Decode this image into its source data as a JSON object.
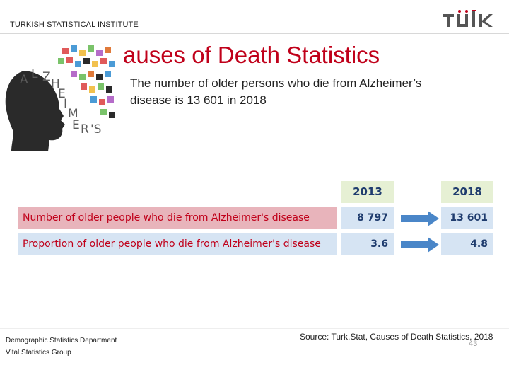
{
  "header": {
    "institute": "TURKISH STATISTICAL INSTITUTE",
    "logo_text": "TÜİK"
  },
  "graphic": {
    "letters": [
      "A",
      "L",
      "Z",
      "H",
      "E",
      "I",
      "M",
      "E",
      "R",
      "'S"
    ]
  },
  "slide": {
    "title": "auses of Death Statistics",
    "subtitle": "The number of older persons who die from Alzheimer’s disease is 13 601 in 2018"
  },
  "table": {
    "columns": [
      "2013",
      "2018"
    ],
    "rows": [
      {
        "label": "Number of older people who die from Alzheimer's disease",
        "v2013": "8 797",
        "v2018": "13 601"
      },
      {
        "label": "Proportion of older people who die from Alzheimer's disease",
        "v2013": "3.6",
        "v2018": "4.8"
      }
    ]
  },
  "source": "Source: Turk.Stat, Causes of Death Statistics, 2018",
  "footer": {
    "department": "Demographic Statistics Department",
    "group": "Vital Statistics Group",
    "page_number": "43"
  },
  "colors": {
    "accent_red": "#c0001a",
    "header_green": "#e6f0d4",
    "cell_blue": "#d6e4f3",
    "row_pink": "#e8b4bb",
    "arrow_blue": "#4a86c8",
    "navy": "#1f3c6e"
  }
}
